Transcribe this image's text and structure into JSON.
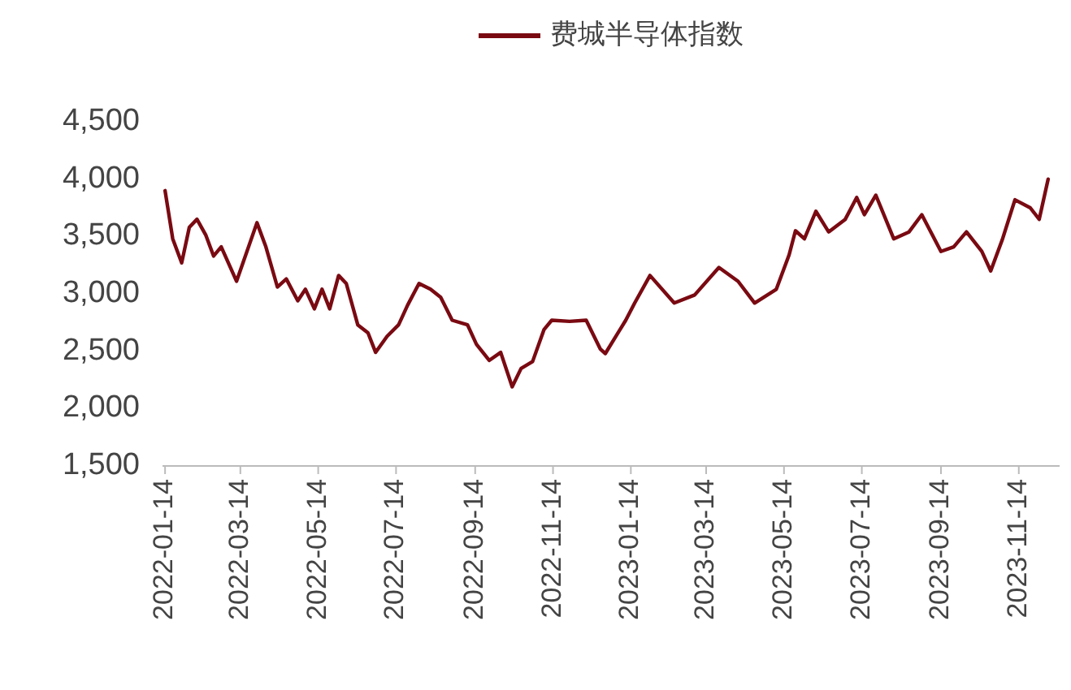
{
  "chart_data": {
    "type": "line",
    "legend": "top",
    "grid": false,
    "marker": "none",
    "line_style": "solid",
    "xlim": [
      "2022-01-12",
      "2023-12-16"
    ],
    "xticks": [
      "2022-01-14",
      "2022-03-14",
      "2022-05-14",
      "2022-07-14",
      "2022-09-14",
      "2022-11-14",
      "2023-01-14",
      "2023-03-14",
      "2023-05-14",
      "2023-07-14",
      "2023-09-14",
      "2023-11-14"
    ],
    "ylim": [
      1500,
      4500
    ],
    "yticks": [
      {
        "value": 1500,
        "label": "1,500"
      },
      {
        "value": 2000,
        "label": "2,000"
      },
      {
        "value": 2500,
        "label": "2,500"
      },
      {
        "value": 3000,
        "label": "3,000"
      },
      {
        "value": 3500,
        "label": "3,500"
      },
      {
        "value": 4000,
        "label": "4,000"
      },
      {
        "value": 4500,
        "label": "4,500"
      }
    ],
    "series": [
      {
        "name": "费城半导体指数",
        "color": "#7a0a12",
        "x": [
          "2022-01-14",
          "2022-01-20",
          "2022-01-27",
          "2022-02-02",
          "2022-02-08",
          "2022-02-15",
          "2022-02-21",
          "2022-02-27",
          "2022-03-11",
          "2022-03-17",
          "2022-03-27",
          "2022-04-03",
          "2022-04-12",
          "2022-04-19",
          "2022-04-28",
          "2022-05-04",
          "2022-05-11",
          "2022-05-17",
          "2022-05-23",
          "2022-05-30",
          "2022-06-05",
          "2022-06-14",
          "2022-06-22",
          "2022-06-28",
          "2022-07-07",
          "2022-07-16",
          "2022-07-23",
          "2022-08-01",
          "2022-08-10",
          "2022-08-18",
          "2022-08-27",
          "2022-09-08",
          "2022-09-15",
          "2022-09-25",
          "2022-10-04",
          "2022-10-13",
          "2022-10-20",
          "2022-10-29",
          "2022-11-07",
          "2022-11-13",
          "2022-11-27",
          "2022-12-10",
          "2022-12-21",
          "2022-12-25",
          "2023-01-10",
          "2023-01-17",
          "2023-01-29",
          "2023-02-17",
          "2023-03-05",
          "2023-03-24",
          "2023-04-08",
          "2023-04-21",
          "2023-05-08",
          "2023-05-18",
          "2023-05-23",
          "2023-05-30",
          "2023-06-08",
          "2023-06-18",
          "2023-07-01",
          "2023-07-10",
          "2023-07-16",
          "2023-07-25",
          "2023-08-08",
          "2023-08-20",
          "2023-08-30",
          "2023-09-14",
          "2023-09-24",
          "2023-10-04",
          "2023-10-16",
          "2023-10-23",
          "2023-11-01",
          "2023-11-11",
          "2023-11-23",
          "2023-11-30",
          "2023-12-07"
        ],
        "values": [
          3900,
          3480,
          3270,
          3580,
          3650,
          3510,
          3330,
          3410,
          3110,
          3300,
          3620,
          3410,
          3060,
          3130,
          2940,
          3040,
          2870,
          3040,
          2870,
          3160,
          3090,
          2730,
          2660,
          2490,
          2630,
          2730,
          2900,
          3090,
          3040,
          2970,
          2770,
          2730,
          2560,
          2420,
          2490,
          2190,
          2350,
          2410,
          2690,
          2770,
          2760,
          2770,
          2520,
          2480,
          2770,
          2920,
          3160,
          2920,
          2990,
          3230,
          3110,
          2920,
          3040,
          3340,
          3550,
          3480,
          3720,
          3540,
          3650,
          3840,
          3690,
          3860,
          3480,
          3540,
          3690,
          3370,
          3410,
          3540,
          3370,
          3200,
          3470,
          3820,
          3750,
          3650,
          4000
        ]
      }
    ]
  }
}
